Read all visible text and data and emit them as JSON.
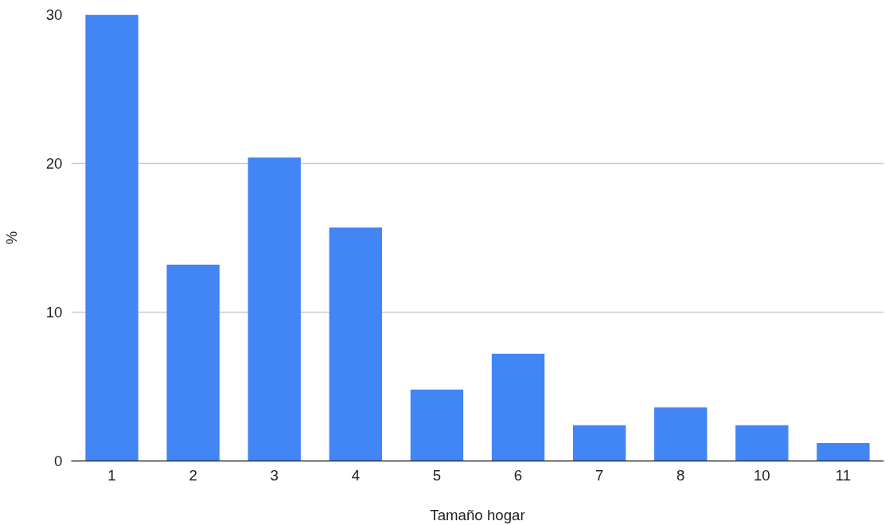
{
  "chart_data": {
    "type": "bar",
    "xlabel": "Tamaño hogar",
    "ylabel": "%",
    "categories": [
      "1",
      "2",
      "3",
      "4",
      "5",
      "6",
      "7",
      "8",
      "10",
      "11"
    ],
    "values": [
      30,
      13.2,
      20.4,
      15.7,
      4.8,
      7.2,
      2.4,
      3.6,
      2.4,
      1.2
    ],
    "color": "#4285f4",
    "ylim": [
      0,
      30
    ],
    "yticks": [
      0,
      10,
      20,
      30
    ],
    "grid": "y"
  }
}
